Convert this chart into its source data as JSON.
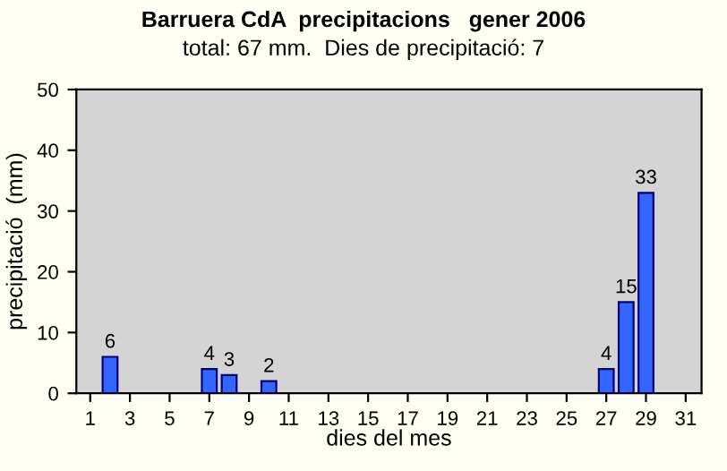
{
  "chart_data": {
    "type": "bar",
    "title": "Barruera CdA  precipitacions   gener 2006",
    "subtitle": "total: 67 mm.  Dies de precipitació: 7",
    "xlabel": "dies del mes",
    "ylabel": "precipitació  (mm)",
    "x": [
      2,
      7,
      8,
      10,
      27,
      28,
      29
    ],
    "values": [
      6,
      4,
      3,
      2,
      4,
      15,
      33
    ],
    "color": "#3366ff",
    "xlim": [
      0.3,
      31.8
    ],
    "xticks": [
      1,
      3,
      5,
      7,
      9,
      11,
      13,
      15,
      17,
      19,
      21,
      23,
      25,
      27,
      29,
      31
    ],
    "ylim": [
      0,
      50
    ],
    "yticks": [
      0,
      10,
      20,
      30,
      40,
      50
    ],
    "data_labels": true,
    "grid": false,
    "legend": false
  }
}
